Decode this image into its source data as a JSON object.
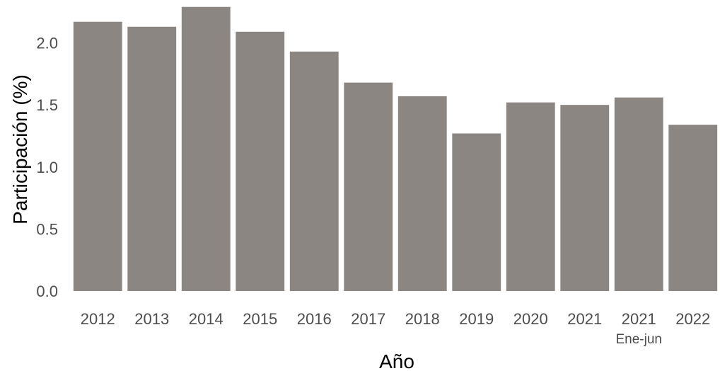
{
  "chart_data": {
    "type": "bar",
    "title": "",
    "xlabel": "Año",
    "ylabel": "Participación (%)",
    "categories": [
      "2012",
      "2013",
      "2014",
      "2015",
      "2016",
      "2017",
      "2018",
      "2019",
      "2020",
      "2021",
      "2021",
      "2022"
    ],
    "category_sublabels": [
      "",
      "",
      "",
      "",
      "",
      "",
      "",
      "",
      "",
      "",
      "Ene-jun",
      ""
    ],
    "values": [
      2.17,
      2.13,
      2.29,
      2.09,
      1.93,
      1.68,
      1.57,
      1.27,
      1.52,
      1.5,
      1.56,
      1.34
    ],
    "ylim": [
      0,
      2.3
    ],
    "yticks": [
      "0.0",
      "0.5",
      "1.0",
      "1.5",
      "2.0"
    ],
    "grid": false,
    "legend": "none",
    "bar_color": "#8b8682"
  }
}
